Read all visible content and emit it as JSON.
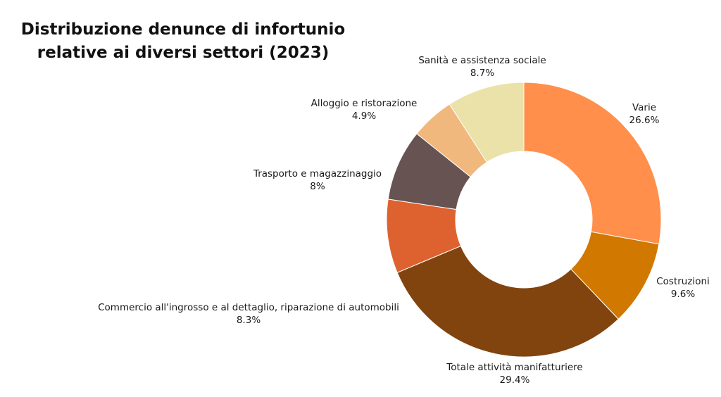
{
  "chart_data": {
    "type": "pie",
    "donut": true,
    "title_lines": [
      "Distribuzione denunce di infortunio",
      "relative ai diversi settori (2023)"
    ],
    "slices": [
      {
        "label": "Varie",
        "value": 26.6,
        "value_label": "26.6%",
        "color": "#FF8F4B"
      },
      {
        "label": "Costruzioni",
        "value": 9.6,
        "value_label": "9.6%",
        "color": "#D17800"
      },
      {
        "label": "Totale attività manifatturiere",
        "value": 29.4,
        "value_label": "29.4%",
        "color": "#81440E"
      },
      {
        "label": "Commercio all'ingrosso e al dettaglio, riparazione di automobili",
        "value": 8.3,
        "value_label": "8.3%",
        "color": "#DE6230"
      },
      {
        "label": "Trasporto e magazzinaggio",
        "value": 8,
        "value_label": "8%",
        "color": "#665352"
      },
      {
        "label": "Alloggio e ristorazione",
        "value": 4.9,
        "value_label": "4.9%",
        "color": "#F0B87D"
      },
      {
        "label": "Sanità e assistenza sociale",
        "value": 8.7,
        "value_label": "8.7%",
        "color": "#EAE2A8"
      }
    ],
    "legend": "none"
  }
}
